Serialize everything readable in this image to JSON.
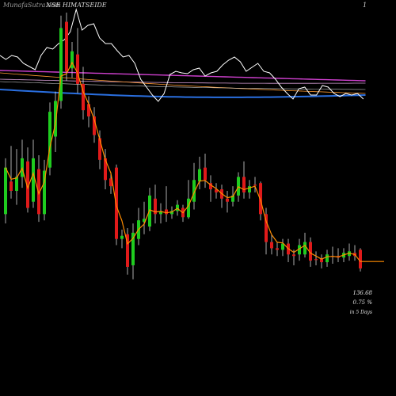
{
  "header": {
    "site": "MunafaSutra.com",
    "ticker": "NSE HIMATSEIDE",
    "number": "1"
  },
  "side": {
    "price": "136.68",
    "change": "0.75 %",
    "period": "in 5 Days"
  },
  "colors": {
    "up": "#1fcc1f",
    "down": "#e01a1a",
    "wick": "#d8d8d8",
    "ema_short": "#ff8c00",
    "ema_mid": "#ffffff",
    "ema_long": "#ff9a30",
    "sma_long": "#2a6fe0",
    "sma_extra": "#d040d0",
    "volume_line": "#ffffff"
  },
  "chart_data": {
    "type": "candlestick",
    "candles": [
      {
        "o": 176,
        "c": 206,
        "h": 212,
        "l": 170,
        "up": true
      },
      {
        "o": 197,
        "c": 191,
        "h": 220,
        "l": 186,
        "up": false
      },
      {
        "o": 191,
        "c": 200,
        "h": 218,
        "l": 182,
        "up": true
      },
      {
        "o": 200,
        "c": 212,
        "h": 224,
        "l": 193,
        "up": true
      },
      {
        "o": 210,
        "c": 180,
        "h": 219,
        "l": 177,
        "up": false
      },
      {
        "o": 184,
        "c": 212,
        "h": 224,
        "l": 180,
        "up": true
      },
      {
        "o": 205,
        "c": 176,
        "h": 214,
        "l": 171,
        "up": false
      },
      {
        "o": 176,
        "c": 204,
        "h": 211,
        "l": 172,
        "up": true
      },
      {
        "o": 206,
        "c": 242,
        "h": 248,
        "l": 201,
        "up": true
      },
      {
        "o": 226,
        "c": 249,
        "h": 255,
        "l": 216,
        "up": true
      },
      {
        "o": 249,
        "c": 296,
        "h": 304,
        "l": 244,
        "up": true
      },
      {
        "o": 300,
        "c": 268,
        "h": 306,
        "l": 262,
        "up": false
      },
      {
        "o": 270,
        "c": 281,
        "h": 287,
        "l": 264,
        "up": true
      },
      {
        "o": 279,
        "c": 260,
        "h": 296,
        "l": 254,
        "up": false
      },
      {
        "o": 260,
        "c": 243,
        "h": 271,
        "l": 237,
        "up": false
      },
      {
        "o": 247,
        "c": 239,
        "h": 252,
        "l": 232,
        "up": false
      },
      {
        "o": 239,
        "c": 227,
        "h": 245,
        "l": 222,
        "up": false
      },
      {
        "o": 225,
        "c": 211,
        "h": 230,
        "l": 205,
        "up": false
      },
      {
        "o": 212,
        "c": 198,
        "h": 218,
        "l": 192,
        "up": false
      },
      {
        "o": 199,
        "c": 194,
        "h": 203,
        "l": 189,
        "up": false
      },
      {
        "o": 206,
        "c": 160,
        "h": 208,
        "l": 156,
        "up": false
      },
      {
        "o": 160,
        "c": 162,
        "h": 166,
        "l": 154,
        "up": true
      },
      {
        "o": 163,
        "c": 142,
        "h": 167,
        "l": 137,
        "up": false
      },
      {
        "o": 143,
        "c": 164,
        "h": 170,
        "l": 134,
        "up": true
      },
      {
        "o": 160,
        "c": 172,
        "h": 180,
        "l": 156,
        "up": true
      },
      {
        "o": 171,
        "c": 173,
        "h": 184,
        "l": 163,
        "up": true
      },
      {
        "o": 168,
        "c": 188,
        "h": 193,
        "l": 165,
        "up": true
      },
      {
        "o": 186,
        "c": 176,
        "h": 195,
        "l": 170,
        "up": false
      },
      {
        "o": 176,
        "c": 178,
        "h": 183,
        "l": 170,
        "up": true
      },
      {
        "o": 179,
        "c": 176,
        "h": 194,
        "l": 171,
        "up": false
      },
      {
        "o": 176,
        "c": 178,
        "h": 181,
        "l": 173,
        "up": true
      },
      {
        "o": 178,
        "c": 182,
        "h": 185,
        "l": 175,
        "up": true
      },
      {
        "o": 180,
        "c": 174,
        "h": 182,
        "l": 171,
        "up": false
      },
      {
        "o": 174,
        "c": 186,
        "h": 198,
        "l": 173,
        "up": true
      },
      {
        "o": 184,
        "c": 198,
        "h": 209,
        "l": 179,
        "up": true
      },
      {
        "o": 197,
        "c": 205,
        "h": 213,
        "l": 192,
        "up": true
      },
      {
        "o": 206,
        "c": 198,
        "h": 215,
        "l": 193,
        "up": false
      },
      {
        "o": 196,
        "c": 192,
        "h": 201,
        "l": 184,
        "up": false
      },
      {
        "o": 192,
        "c": 190,
        "h": 196,
        "l": 186,
        "up": false
      },
      {
        "o": 192,
        "c": 186,
        "h": 195,
        "l": 180,
        "up": false
      },
      {
        "o": 186,
        "c": 184,
        "h": 191,
        "l": 177,
        "up": false
      },
      {
        "o": 184,
        "c": 188,
        "h": 194,
        "l": 181,
        "up": true
      },
      {
        "o": 188,
        "c": 200,
        "h": 203,
        "l": 184,
        "up": true
      },
      {
        "o": 200,
        "c": 190,
        "h": 210,
        "l": 186,
        "up": false
      },
      {
        "o": 190,
        "c": 194,
        "h": 198,
        "l": 186,
        "up": true
      },
      {
        "o": 195,
        "c": 195,
        "h": 200,
        "l": 190,
        "up": false
      },
      {
        "o": 196,
        "c": 176,
        "h": 197,
        "l": 172,
        "up": false
      },
      {
        "o": 176,
        "c": 158,
        "h": 180,
        "l": 150,
        "up": false
      },
      {
        "o": 158,
        "c": 154,
        "h": 163,
        "l": 150,
        "up": false
      },
      {
        "o": 154,
        "c": 153,
        "h": 158,
        "l": 149,
        "up": false
      },
      {
        "o": 153,
        "c": 157,
        "h": 160,
        "l": 149,
        "up": true
      },
      {
        "o": 157,
        "c": 150,
        "h": 160,
        "l": 145,
        "up": false
      },
      {
        "o": 150,
        "c": 149,
        "h": 153,
        "l": 143,
        "up": false
      },
      {
        "o": 150,
        "c": 156,
        "h": 160,
        "l": 146,
        "up": true
      },
      {
        "o": 150,
        "c": 158,
        "h": 164,
        "l": 148,
        "up": true
      },
      {
        "o": 158,
        "c": 146,
        "h": 161,
        "l": 142,
        "up": false
      },
      {
        "o": 147,
        "c": 147,
        "h": 152,
        "l": 143,
        "up": false
      },
      {
        "o": 147,
        "c": 145,
        "h": 150,
        "l": 141,
        "up": false
      },
      {
        "o": 145,
        "c": 150,
        "h": 153,
        "l": 142,
        "up": true
      },
      {
        "o": 149,
        "c": 149,
        "h": 155,
        "l": 144,
        "up": false
      },
      {
        "o": 149,
        "c": 148,
        "h": 154,
        "l": 145,
        "up": false
      },
      {
        "o": 148,
        "c": 151,
        "h": 154,
        "l": 145,
        "up": true
      },
      {
        "o": 149,
        "c": 152,
        "h": 157,
        "l": 146,
        "up": true
      },
      {
        "o": 151,
        "c": 149,
        "h": 156,
        "l": 146,
        "up": false
      },
      {
        "o": 153,
        "c": 141,
        "h": 154,
        "l": 139,
        "up": false
      }
    ],
    "last_close": 136.68,
    "change_pct": 0.75
  }
}
